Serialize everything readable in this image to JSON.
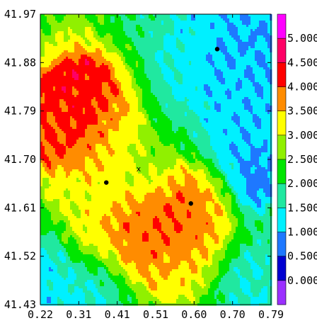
{
  "chart_data": {
    "type": "heatmap",
    "title": "",
    "xlabel": "",
    "ylabel": "",
    "xlim": [
      0.22,
      0.79
    ],
    "ylim": [
      41.43,
      41.97
    ],
    "x_ticks": [
      "0.22",
      "0.31",
      "0.41",
      "0.51",
      "0.60",
      "0.70",
      "0.79"
    ],
    "y_ticks": [
      "41.97",
      "41.88",
      "41.79",
      "41.70",
      "41.61",
      "41.52",
      "41.43"
    ],
    "colorbar": {
      "levels": [
        0.0,
        0.5,
        1.0,
        1.5,
        2.0,
        2.5,
        3.0,
        3.5,
        4.0,
        4.5,
        5.0
      ],
      "level_labels": [
        "0.000",
        "0.500",
        "1.000",
        "1.500",
        "2.000",
        "2.500",
        "3.000",
        "3.500",
        "4.000",
        "4.500",
        "5.000"
      ],
      "colors": [
        "#9b30ff",
        "#0000d0",
        "#1e78ff",
        "#00f0ff",
        "#20e8a0",
        "#00e600",
        "#90f000",
        "#ffff00",
        "#ff8c00",
        "#ff0000",
        "#ff0066",
        "#ff00ff"
      ]
    },
    "markers": [
      {
        "type": "dot",
        "x": 0.383,
        "y": 41.657
      },
      {
        "type": "dot",
        "x": 0.592,
        "y": 41.618
      },
      {
        "type": "dot",
        "x": 0.657,
        "y": 41.905
      },
      {
        "type": "cross",
        "label": "x",
        "x": 0.463,
        "y": 41.683
      }
    ],
    "field_features": [
      {
        "x": 0.73,
        "y": 41.94,
        "v": 1.0,
        "s": 0.08
      },
      {
        "x": 0.58,
        "y": 41.88,
        "v": 1.4,
        "s": 0.09
      },
      {
        "x": 0.7,
        "y": 41.88,
        "v": 0.9,
        "s": 0.06
      },
      {
        "x": 0.76,
        "y": 41.79,
        "v": 1.2,
        "s": 0.07
      },
      {
        "x": 0.73,
        "y": 41.7,
        "v": 1.0,
        "s": 0.06
      },
      {
        "x": 0.75,
        "y": 41.66,
        "v": 0.6,
        "s": 0.03
      },
      {
        "x": 0.74,
        "y": 41.47,
        "v": 1.5,
        "s": 0.07
      },
      {
        "x": 0.26,
        "y": 41.47,
        "v": 1.2,
        "s": 0.06
      },
      {
        "x": 0.33,
        "y": 41.45,
        "v": 1.5,
        "s": 0.06
      },
      {
        "x": 0.31,
        "y": 41.79,
        "v": 4.4,
        "s": 0.09
      },
      {
        "x": 0.34,
        "y": 41.81,
        "v": 4.2,
        "s": 0.05
      },
      {
        "x": 0.23,
        "y": 41.77,
        "v": 3.8,
        "s": 0.05
      },
      {
        "x": 0.4,
        "y": 41.74,
        "v": 3.2,
        "s": 0.05
      },
      {
        "x": 0.39,
        "y": 41.67,
        "v": 3.0,
        "s": 0.05
      },
      {
        "x": 0.52,
        "y": 41.58,
        "v": 4.3,
        "s": 0.07
      },
      {
        "x": 0.57,
        "y": 41.58,
        "v": 4.2,
        "s": 0.06
      },
      {
        "x": 0.47,
        "y": 41.57,
        "v": 3.8,
        "s": 0.05
      },
      {
        "x": 0.34,
        "y": 41.55,
        "v": 3.6,
        "s": 0.04
      },
      {
        "x": 0.62,
        "y": 41.6,
        "v": 3.5,
        "s": 0.05
      },
      {
        "x": 0.55,
        "y": 41.5,
        "v": 3.0,
        "s": 0.06
      },
      {
        "x": 0.29,
        "y": 41.64,
        "v": 2.9,
        "s": 0.04
      },
      {
        "x": 0.49,
        "y": 41.68,
        "v": 2.3,
        "s": 0.05
      }
    ]
  }
}
